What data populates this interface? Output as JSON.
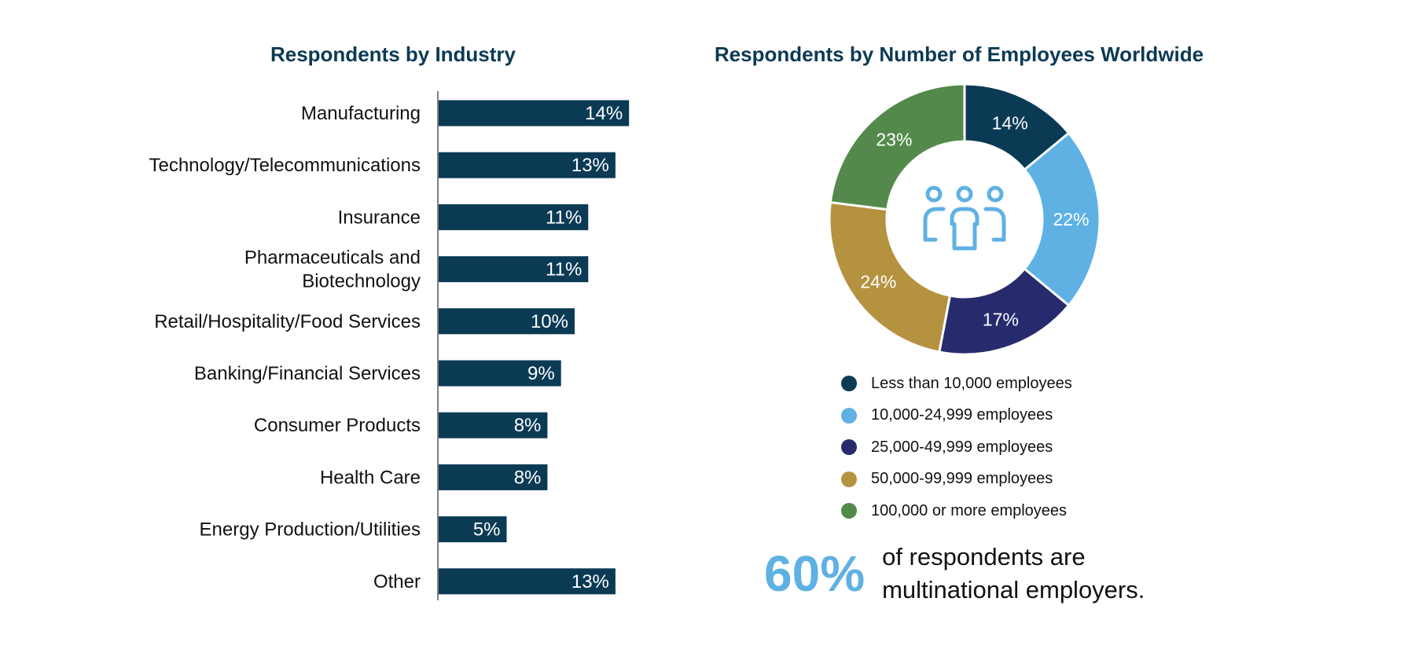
{
  "chart_data": [
    {
      "type": "bar",
      "orientation": "horizontal",
      "title": "Respondents by Industry",
      "categories": [
        "Manufacturing",
        "Technology/Telecommunications",
        "Insurance",
        "Pharmaceuticals and Biotechnology",
        "Retail/Hospitality/Food Services",
        "Banking/Financial Services",
        "Consumer Products",
        "Health Care",
        "Energy Production/Utilities",
        "Other"
      ],
      "category_lines": [
        [
          "Manufacturing"
        ],
        [
          "Technology/Telecommunications"
        ],
        [
          "Insurance"
        ],
        [
          "Pharmaceuticals and",
          "Biotechnology"
        ],
        [
          "Retail/Hospitality/Food Services"
        ],
        [
          "Banking/Financial Services"
        ],
        [
          "Consumer Products"
        ],
        [
          "Health Care"
        ],
        [
          "Energy Production/Utilities"
        ],
        [
          "Other"
        ]
      ],
      "values": [
        14,
        13,
        11,
        11,
        10,
        9,
        8,
        8,
        5,
        13
      ],
      "data_labels": [
        "14%",
        "13%",
        "11%",
        "11%",
        "10%",
        "9%",
        "8%",
        "8%",
        "5%",
        "13%"
      ],
      "unit": "%",
      "bar_color": "#0b3a55",
      "label_color": "#ffffff",
      "grid": false
    },
    {
      "type": "pie",
      "variant": "donut",
      "title": "Respondents by Number of Employees Worldwide",
      "center_icon": "people-group-icon",
      "slices": [
        {
          "label": "Less than 10,000 employees",
          "value": 14,
          "text": "14%",
          "color": "#0b3a55"
        },
        {
          "label": "10,000-24,999 employees",
          "value": 22,
          "text": "22%",
          "color": "#5fb1e3"
        },
        {
          "label": "25,000-49,999 employees",
          "value": 17,
          "text": "17%",
          "color": "#272b6e"
        },
        {
          "label": "50,000-99,999 employees",
          "value": 24,
          "text": "24%",
          "color": "#b59240"
        },
        {
          "label": "100,000 or more employees",
          "value": 23,
          "text": "23%",
          "color": "#538a4b"
        }
      ],
      "legend_position": "bottom"
    }
  ],
  "callout": {
    "value": "60%",
    "line1": "of respondents are",
    "line2": "multinational employers."
  },
  "colors": {
    "title": "#0b3a55",
    "accent": "#5fb1e3",
    "axis": "#555555",
    "text": "#111111"
  }
}
